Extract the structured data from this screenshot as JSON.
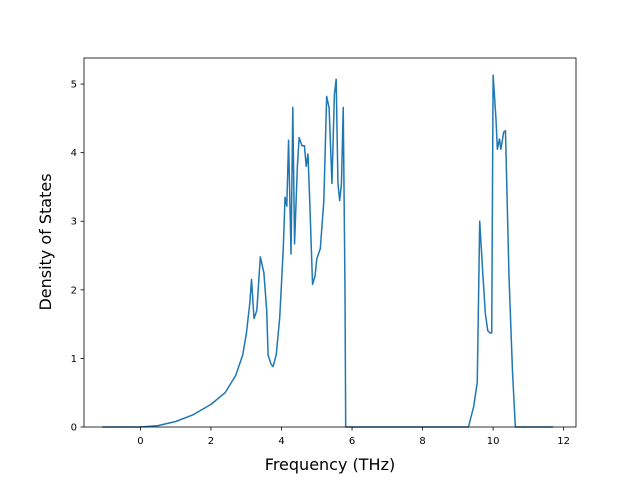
{
  "chart_data": {
    "type": "line",
    "x_label": "Frequency (THz)",
    "y_label": "Density of States",
    "series": [
      {
        "color": "#1f77b4",
        "x": [
          -1.08,
          -0.5,
          0,
          0.5,
          1.0,
          1.5,
          2.0,
          2.4,
          2.7,
          2.9,
          3.0,
          3.1,
          3.15,
          3.22,
          3.3,
          3.4,
          3.5,
          3.58,
          3.62,
          3.7,
          3.76,
          3.85,
          3.95,
          4.05,
          4.1,
          4.15,
          4.2,
          4.27,
          4.32,
          4.37,
          4.45,
          4.5,
          4.58,
          4.65,
          4.7,
          4.75,
          4.8,
          4.88,
          4.95,
          5.0,
          5.1,
          5.2,
          5.28,
          5.35,
          5.43,
          5.5,
          5.55,
          5.6,
          5.65,
          5.7,
          5.75,
          5.8,
          5.82,
          6.0,
          9.3,
          9.45,
          9.55,
          9.62,
          9.7,
          9.78,
          9.85,
          9.92,
          9.96,
          10.0,
          10.08,
          10.12,
          10.18,
          10.22,
          10.3,
          10.35,
          10.45,
          10.55,
          10.63,
          11.7
        ],
        "values": [
          0,
          0,
          0,
          0.02,
          0.08,
          0.18,
          0.33,
          0.5,
          0.75,
          1.05,
          1.35,
          1.8,
          2.15,
          1.58,
          1.7,
          2.48,
          2.25,
          1.7,
          1.05,
          0.92,
          0.88,
          1.05,
          1.6,
          2.6,
          3.35,
          3.22,
          4.18,
          2.52,
          4.66,
          2.67,
          3.8,
          4.22,
          4.1,
          4.1,
          3.8,
          3.98,
          3.3,
          2.08,
          2.2,
          2.45,
          2.6,
          3.3,
          4.82,
          4.65,
          3.55,
          4.85,
          5.07,
          3.55,
          3.3,
          3.55,
          4.66,
          2.0,
          0,
          0,
          0,
          0.3,
          0.65,
          3.0,
          2.3,
          1.65,
          1.4,
          1.37,
          1.37,
          5.13,
          4.5,
          4.05,
          4.2,
          4.05,
          4.3,
          4.32,
          2.2,
          0.8,
          0,
          0
        ]
      }
    ],
    "xlim": [
      -1.6,
      12.35
    ],
    "xticks": [
      0,
      2,
      4,
      6,
      8,
      10,
      12
    ],
    "ylim": [
      0,
      5.38
    ],
    "yticks": [
      0,
      1,
      2,
      3,
      4,
      5
    ]
  }
}
